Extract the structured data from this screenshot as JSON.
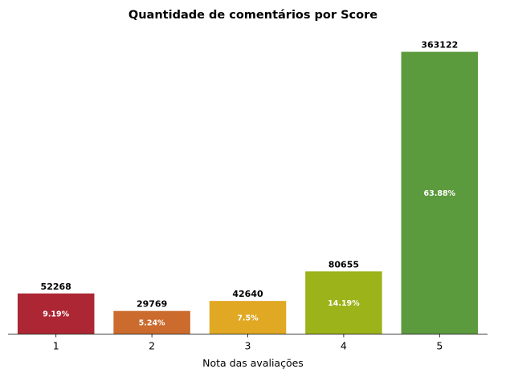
{
  "chart_data": {
    "type": "bar",
    "title": "Quantidade de comentários por Score",
    "xlabel": "Nota das avaliações",
    "ylabel": "",
    "ylim": [
      0,
      381278
    ],
    "grid": false,
    "categories": [
      "1",
      "2",
      "3",
      "4",
      "5"
    ],
    "values": [
      52268,
      29769,
      42640,
      80655,
      363122
    ],
    "value_labels": [
      "52268",
      "29769",
      "42640",
      "80655",
      "363122"
    ],
    "percent_labels": [
      "9.19%",
      "5.24%",
      "7.5%",
      "14.19%",
      "63.88%"
    ],
    "colors": [
      "#ac2733",
      "#cb6b2d",
      "#e0a823",
      "#9cb31a",
      "#5b9a3d"
    ]
  }
}
